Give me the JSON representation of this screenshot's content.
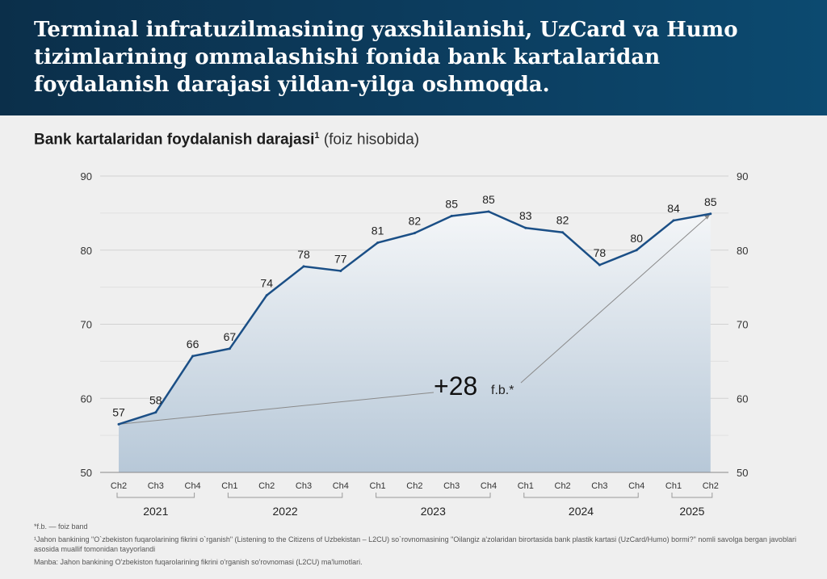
{
  "header": {
    "title": "Terminal infratuzilmasining yaxshilanishi, UzCard va Humo tizimlarining ommalashishi fonida bank kartalaridan foydalanish darajasi yildan-yilga oshmoqda."
  },
  "chart_title": {
    "main": "Bank kartalaridan foydalanish darajasi",
    "sup": "1",
    "unit": "(foiz hisobida)"
  },
  "chart_data": {
    "type": "area",
    "title": "Bank kartalaridan foydalanish darajasi",
    "ylabel": "(foiz hisobida)",
    "ylim": [
      50,
      90
    ],
    "yticks": [
      50,
      60,
      70,
      80,
      90
    ],
    "categories": [
      "Ch2",
      "Ch3",
      "Ch4",
      "Ch1",
      "Ch2",
      "Ch3",
      "Ch4",
      "Ch1",
      "Ch2",
      "Ch3",
      "Ch4",
      "Ch1",
      "Ch2",
      "Ch3",
      "Ch4",
      "Ch1",
      "Ch2"
    ],
    "values": [
      57,
      58,
      66,
      67,
      74,
      78,
      77,
      81,
      82,
      85,
      85,
      83,
      82,
      78,
      80,
      84,
      85
    ],
    "plot_values": [
      56.5,
      58.1,
      65.7,
      66.7,
      73.9,
      77.8,
      77.2,
      81.0,
      82.3,
      84.6,
      85.2,
      83.0,
      82.4,
      78.0,
      80.0,
      84.0,
      84.9
    ],
    "years": [
      {
        "label": "2021",
        "from": 0,
        "to": 2
      },
      {
        "label": "2022",
        "from": 3,
        "to": 6
      },
      {
        "label": "2023",
        "from": 7,
        "to": 10
      },
      {
        "label": "2024",
        "from": 11,
        "to": 14
      },
      {
        "label": "2025",
        "from": 15,
        "to": 16
      }
    ],
    "annotation": {
      "value": "+28",
      "unit": "f.b.*",
      "from_index": 0,
      "to_index": 16
    },
    "grid": true,
    "line_color": "#1b4f86",
    "fill_top_color": "#f4f6f8",
    "fill_bottom_color": "#b7c8d8"
  },
  "footnotes": {
    "fb": "*f.b. — foiz band",
    "note1": "¹Jahon bankining \"O`zbekiston fuqarolarining fikrini o`rganish\" (Listening to the Citizens of Uzbekistan – L2CU) so`rovnomasining \"Oilangiz a'zolaridan birortasida bank plastik kartasi (UzCard/Humo) bormi?\" nomli savolga bergan javoblari asosida muallif tomonidan tayyorlandi",
    "source": "Manba: Jahon bankining O'zbekiston fuqarolarining fikrini o'rganish so'rovnomasi (L2CU) ma'lumotlari."
  }
}
